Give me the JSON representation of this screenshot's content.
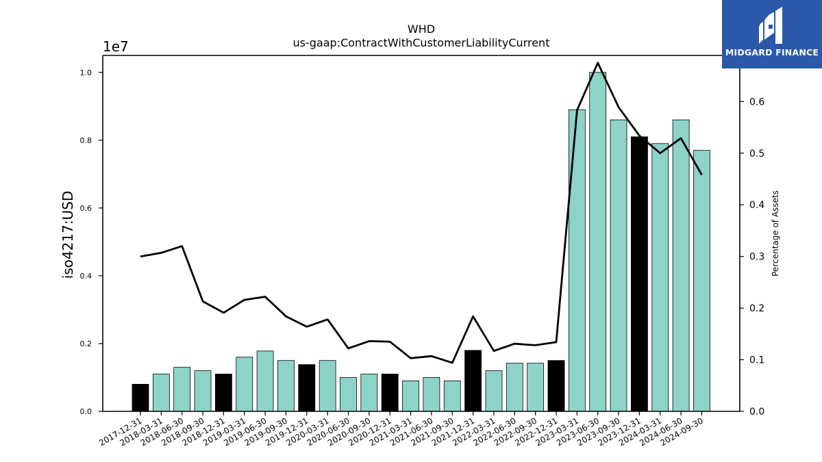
{
  "brand": {
    "name": "MIDGARD FINANCE",
    "bg_color": "#2b58a8"
  },
  "chart_data": {
    "type": "bar",
    "title": "WHD",
    "subtitle": "us-gaap:ContractWithCustomerLiabilityCurrent",
    "ylabel": "iso4217:USD",
    "y2label": "Percentage of Assets",
    "offset_text": "1e7",
    "ylim": [
      0,
      10500000
    ],
    "y2lim": [
      0,
      0.6893
    ],
    "yticks": [
      0.0,
      0.2,
      0.4,
      0.6,
      0.8,
      1.0
    ],
    "ytick_labels": [
      "0.0",
      "0.2",
      "0.4",
      "0.6",
      "0.8",
      "1.0"
    ],
    "y2ticks": [
      0.0,
      0.1,
      0.2,
      0.3,
      0.4,
      0.5,
      0.6
    ],
    "y2tick_labels": [
      "0.0",
      "0.1",
      "0.2",
      "0.3",
      "0.4",
      "0.5",
      "0.6"
    ],
    "colors": {
      "q4": "#000000",
      "other": "#8dd3c7",
      "line": "#000000"
    },
    "categories": [
      "2017-12-31",
      "2018-03-31",
      "2018-06-30",
      "2018-09-30",
      "2018-12-31",
      "2019-03-31",
      "2019-06-30",
      "2019-09-30",
      "2019-12-31",
      "2020-03-31",
      "2020-06-30",
      "2020-09-30",
      "2020-12-31",
      "2021-03-31",
      "2021-06-30",
      "2021-09-30",
      "2021-12-31",
      "2022-03-31",
      "2022-06-30",
      "2022-09-30",
      "2022-12-31",
      "2023-03-31",
      "2023-06-30",
      "2023-09-30",
      "2023-12-31",
      "2024-03-31",
      "2024-06-30",
      "2024-09-30"
    ],
    "series": [
      {
        "type": "bar",
        "values": [
          800000,
          1100000,
          1300000,
          1200000,
          1100000,
          1600000,
          1780000,
          1500000,
          1380000,
          1500000,
          1000000,
          1100000,
          1100000,
          900000,
          1000000,
          900000,
          1800000,
          1200000,
          1420000,
          1420000,
          1500000,
          8900000,
          10000000,
          8600000,
          8100000,
          7900000,
          8600000,
          7700000
        ]
      },
      {
        "type": "line",
        "axis": "right",
        "values": [
          0.3,
          0.307,
          0.32,
          0.213,
          0.191,
          0.216,
          0.222,
          0.184,
          0.164,
          0.178,
          0.122,
          0.136,
          0.135,
          0.103,
          0.107,
          0.094,
          0.184,
          0.117,
          0.131,
          0.128,
          0.134,
          0.583,
          0.675,
          0.589,
          0.534,
          0.5,
          0.529,
          0.458
        ]
      }
    ]
  }
}
